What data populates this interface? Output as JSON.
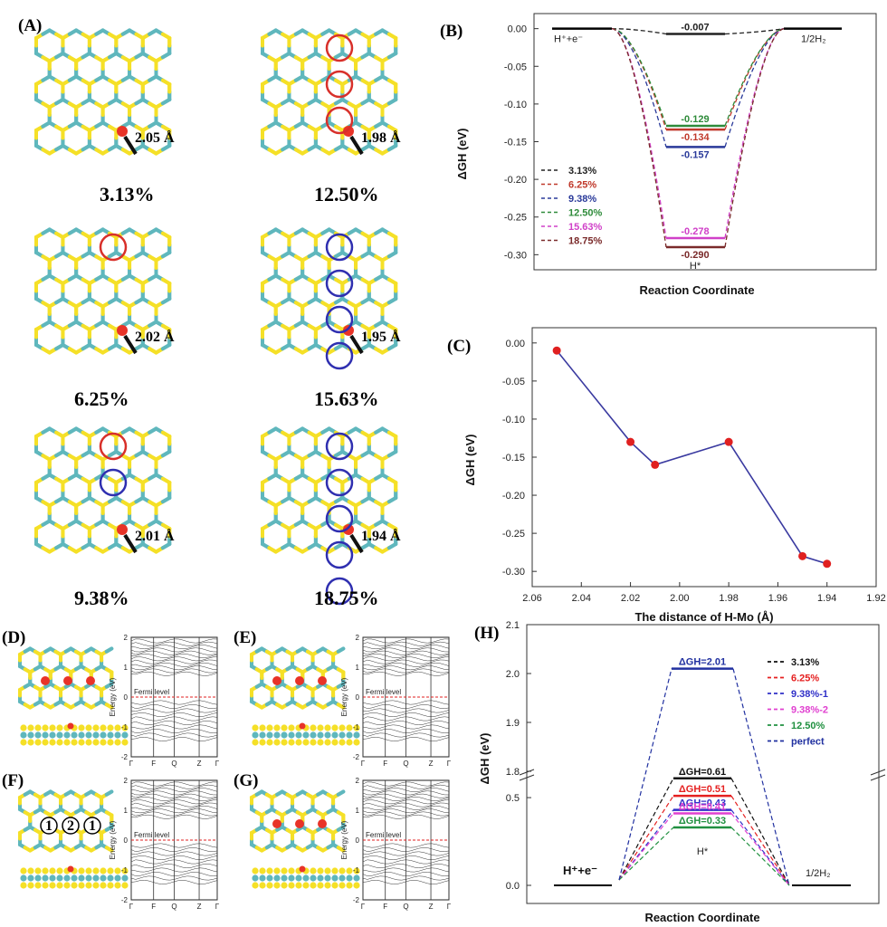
{
  "colors": {
    "S": "#f5e027",
    "Mo": "#5fb7bd",
    "H": "#e83328",
    "red_circle": "#d8302a",
    "blue_circle": "#2f2fb0"
  },
  "panelA": {
    "label": "(A)",
    "structures": [
      {
        "pct": "3.13%",
        "dist": "2.05 Å",
        "circles": []
      },
      {
        "pct": "12.50%",
        "dist": "1.98 Å",
        "circles": [
          "red",
          "red",
          "red"
        ]
      },
      {
        "pct": "6.25%",
        "dist": "2.02 Å",
        "circles": [
          "red"
        ]
      },
      {
        "pct": "15.63%",
        "dist": "1.95 Å",
        "circles": [
          "blue",
          "blue",
          "blue",
          "blue"
        ]
      },
      {
        "pct": "9.38%",
        "dist": "2.01 Å",
        "circles": [
          "red",
          "blue"
        ]
      },
      {
        "pct": "18.75%",
        "dist": "1.94 Å",
        "circles": [
          "blue",
          "blue",
          "blue",
          "blue",
          "blue"
        ]
      }
    ]
  },
  "chart_data": [
    {
      "panel": "(B)",
      "type": "line",
      "xlabel": "Reaction Coordinate",
      "ylabel": "ΔGH (eV)",
      "ylim": [
        -0.32,
        0.02
      ],
      "yticks": [
        "0.00",
        "-0.05",
        "-0.10",
        "-0.15",
        "-0.20",
        "-0.25",
        "-0.30"
      ],
      "initial_label": "H⁺+e⁻",
      "final_label": "1/2H₂",
      "mid_label": "H*",
      "series": [
        {
          "name": "3.13%",
          "value": -0.007,
          "label": "-0.007",
          "color": "#222222"
        },
        {
          "name": "6.25%",
          "value": -0.134,
          "label": "-0.134",
          "color": "#c0392b"
        },
        {
          "name": "9.38%",
          "value": -0.157,
          "label": "-0.157",
          "color": "#2a3a9a"
        },
        {
          "name": "12.50%",
          "value": -0.129,
          "label": "-0.129",
          "color": "#2e8b3a"
        },
        {
          "name": "15.63%",
          "value": -0.278,
          "label": "-0.278",
          "color": "#d040c8"
        },
        {
          "name": "18.75%",
          "value": -0.29,
          "label": "-0.290",
          "color": "#7a2a2a"
        }
      ]
    },
    {
      "panel": "(C)",
      "type": "line",
      "xlabel": "The distance of H-Mo (Å)",
      "ylabel": "ΔGH (eV)",
      "xlim": [
        2.06,
        1.92
      ],
      "ylim": [
        -0.32,
        0.02
      ],
      "xticks": [
        "2.06",
        "2.04",
        "2.02",
        "2.00",
        "1.98",
        "1.96",
        "1.94",
        "1.92"
      ],
      "yticks": [
        "0.00",
        "-0.05",
        "-0.10",
        "-0.15",
        "-0.20",
        "-0.25",
        "-0.30"
      ],
      "x": [
        2.05,
        2.02,
        2.01,
        1.98,
        1.95,
        1.94
      ],
      "y": [
        -0.01,
        -0.13,
        -0.16,
        -0.13,
        -0.28,
        -0.29
      ]
    },
    {
      "panel": "(H)",
      "type": "line",
      "xlabel": "Reaction Coordinate",
      "ylabel": "ΔGH (eV)",
      "yticks_low": [
        "0.0",
        "0.5"
      ],
      "yticks_high": [
        "1.8",
        "1.9",
        "2.0",
        "2.1"
      ],
      "initial_label": "H⁺+e⁻",
      "final_label": "1/2H₂",
      "mid_label": "H*",
      "series": [
        {
          "name": "3.13%",
          "value": 0.61,
          "label": "ΔGH=0.61",
          "color": "#111111"
        },
        {
          "name": "6.25%",
          "value": 0.51,
          "label": "ΔGH=0.51",
          "color": "#e52020"
        },
        {
          "name": "9.38%-1",
          "value": 0.43,
          "label": "ΔGH=0.43",
          "color": "#3030c8"
        },
        {
          "name": "9.38%-2",
          "value": 0.41,
          "label": "ΔGH=0.41",
          "color": "#e040d0"
        },
        {
          "name": "12.50%",
          "value": 0.33,
          "label": "ΔGH=0.33",
          "color": "#209040"
        },
        {
          "name": "perfect",
          "value": 2.01,
          "label": "ΔGH=2.01",
          "color": "#2030a0"
        }
      ]
    }
  ],
  "bands": [
    {
      "label": "(D)"
    },
    {
      "label": "(E)"
    },
    {
      "label": "(F)",
      "numbers": [
        "1",
        "2",
        "1"
      ]
    },
    {
      "label": "(G)"
    }
  ],
  "band_axis": {
    "ylabel": "Energy (eV)",
    "yticks": [
      "2",
      "1",
      "0",
      "-1",
      "-2"
    ],
    "kpoints": [
      "Γ",
      "F",
      "Q",
      "Z",
      "Γ"
    ],
    "fermi": "Fermi level"
  }
}
